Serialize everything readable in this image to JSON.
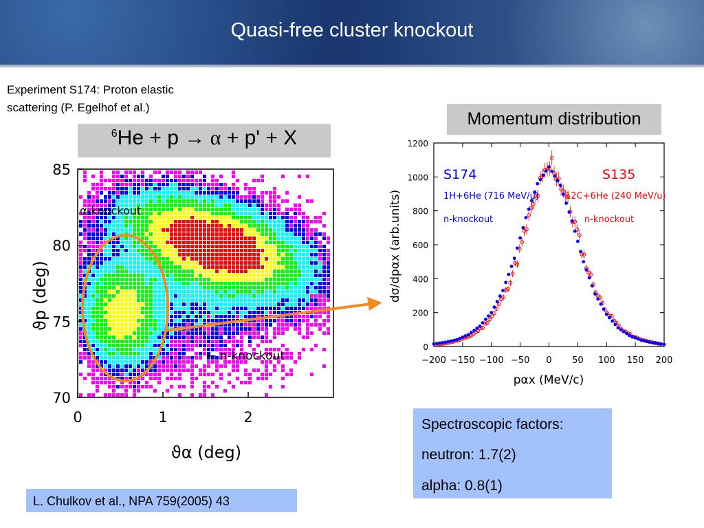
{
  "slide": {
    "title": "Quasi-free cluster knockout",
    "experiment_line1": "Experiment S174: Proton elastic",
    "experiment_line2": "scattering (P. Egelhof et al.)",
    "reaction": {
      "mass_number": "6",
      "text_before": "He + p ",
      "arrow": "→",
      "alpha": " α",
      "text_after": " + p' + X"
    },
    "momentum_label": "Momentum distribution",
    "spectroscopic": {
      "heading": "Spectroscopic factors:",
      "neutron": "neutron:   1.7(2)",
      "alpha": "alpha:       0.8(1)"
    },
    "reference": "L. Chulkov et al., NPA 759(2005) 43"
  },
  "chart_data": [
    {
      "type": "heatmap",
      "xlabel": "ϑα (deg)",
      "ylabel": "ϑp (deg)",
      "xlim": [
        0,
        3
      ],
      "ylim": [
        70,
        85
      ],
      "x_ticks": [
        "0",
        "1",
        "2"
      ],
      "y_ticks": [
        "85",
        "80",
        "75",
        "70"
      ],
      "annotations": [
        "α-knockout",
        "← n-knockout"
      ],
      "colors": [
        "#ff00ff",
        "#0000ff",
        "#00ffff",
        "#00ff00",
        "#ffff00",
        "#ff0000"
      ],
      "clusters": [
        {
          "name": "α-knockout",
          "center": [
            1.6,
            80.2
          ],
          "peak": 1.0
        },
        {
          "name": "n-knockout",
          "center": [
            0.5,
            75.5
          ],
          "peak": 0.6
        }
      ]
    },
    {
      "type": "scatter",
      "xlabel": "pαx (MeV/c)",
      "ylabel": "dσ/dpαx (arb.units)",
      "xlim": [
        -200,
        200
      ],
      "ylim": [
        0,
        1200
      ],
      "x_ticks": [
        "−200",
        "−150",
        "−100",
        "−50",
        "0",
        "50",
        "100",
        "150",
        "200"
      ],
      "y_ticks": [
        "0",
        "200",
        "400",
        "600",
        "800",
        "1000",
        "1200"
      ],
      "series": [
        {
          "name": "S174",
          "subtitle": "1H+6He (716 MeV/u)",
          "label": "n-knockout",
          "color": "#0000ff",
          "x": [
            -200,
            -180,
            -160,
            -140,
            -120,
            -100,
            -80,
            -60,
            -40,
            -20,
            0,
            20,
            40,
            60,
            80,
            100,
            120,
            140,
            160,
            180,
            200
          ],
          "y": [
            15,
            25,
            40,
            70,
            120,
            200,
            330,
            520,
            760,
            960,
            1060,
            950,
            740,
            500,
            310,
            190,
            110,
            65,
            38,
            22,
            12
          ]
        },
        {
          "name": "S135",
          "subtitle": "12C+6He (240 MeV/u)",
          "label": "n-knockout",
          "color": "#ff0000",
          "x": [
            -195,
            -175,
            -155,
            -135,
            -115,
            -95,
            -75,
            -55,
            -35,
            -15,
            5,
            25,
            45,
            65,
            85,
            105,
            125,
            145,
            165,
            185,
            195
          ],
          "y": [
            12,
            22,
            38,
            65,
            115,
            195,
            320,
            510,
            750,
            950,
            1080,
            930,
            720,
            480,
            300,
            185,
            105,
            60,
            35,
            20,
            14
          ]
        }
      ]
    }
  ]
}
